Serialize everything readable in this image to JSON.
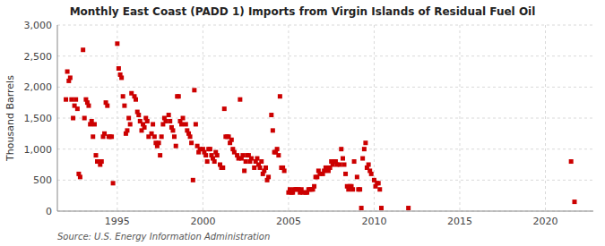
{
  "chart_data": {
    "type": "scatter",
    "title": "Monthly East Coast (PADD 1) Imports from Virgin Islands of Residual Fuel Oil",
    "y_label": "Thousand Barrels",
    "source": "Source: U.S. Energy Information Administration",
    "color": "#cc0000",
    "marker": "square",
    "grid": true,
    "xlim": [
      1991.5,
      2022.8
    ],
    "xticks": [
      1995,
      2000,
      2005,
      2010,
      2015,
      2020
    ],
    "ylim": [
      0,
      3000
    ],
    "yticks": [
      0,
      500,
      {
        "value": 1000,
        "label": "1,000"
      },
      {
        "value": 1500,
        "label": "1,500"
      },
      {
        "value": 2000,
        "label": "2,000"
      },
      {
        "value": 2500,
        "label": "2,500"
      },
      {
        "value": 3000,
        "label": "3,000"
      }
    ],
    "x": [
      1992.0,
      1992.08,
      1992.17,
      1992.25,
      1992.33,
      1992.42,
      1992.5,
      1992.58,
      1992.67,
      1992.75,
      1992.83,
      1993.0,
      1993.08,
      1993.17,
      1993.25,
      1993.33,
      1993.42,
      1993.5,
      1993.58,
      1993.67,
      1993.75,
      1993.83,
      1994.0,
      1994.08,
      1994.17,
      1994.25,
      1994.33,
      1994.42,
      1994.5,
      1994.58,
      1994.67,
      1994.75,
      1995.0,
      1995.08,
      1995.17,
      1995.25,
      1995.33,
      1995.42,
      1995.5,
      1995.58,
      1995.67,
      1995.75,
      1995.83,
      1996.0,
      1996.08,
      1996.17,
      1996.25,
      1996.33,
      1996.42,
      1996.5,
      1996.58,
      1996.67,
      1996.75,
      1996.83,
      1997.0,
      1997.08,
      1997.17,
      1997.25,
      1997.33,
      1997.42,
      1997.5,
      1997.58,
      1997.67,
      1997.75,
      1997.83,
      1998.0,
      1998.08,
      1998.17,
      1998.25,
      1998.33,
      1998.42,
      1998.5,
      1998.58,
      1998.67,
      1998.75,
      1998.83,
      1999.0,
      1999.08,
      1999.17,
      1999.25,
      1999.33,
      1999.42,
      1999.5,
      1999.58,
      1999.67,
      1999.75,
      1999.83,
      2000.0,
      2000.08,
      2000.17,
      2000.25,
      2000.33,
      2000.42,
      2000.5,
      2000.58,
      2000.67,
      2000.75,
      2000.83,
      2001.0,
      2001.08,
      2001.17,
      2001.25,
      2001.33,
      2001.42,
      2001.5,
      2001.58,
      2001.67,
      2001.75,
      2001.83,
      2002.0,
      2002.08,
      2002.17,
      2002.25,
      2002.33,
      2002.42,
      2002.5,
      2002.58,
      2002.67,
      2002.75,
      2002.83,
      2003.0,
      2003.08,
      2003.17,
      2003.25,
      2003.33,
      2003.42,
      2003.5,
      2003.58,
      2003.67,
      2003.75,
      2003.83,
      2004.0,
      2004.08,
      2004.17,
      2004.25,
      2004.33,
      2004.42,
      2004.5,
      2004.58,
      2004.67,
      2004.75,
      2005.0,
      2005.08,
      2005.17,
      2005.25,
      2005.33,
      2005.42,
      2005.5,
      2005.58,
      2005.67,
      2005.75,
      2005.83,
      2006.0,
      2006.08,
      2006.17,
      2006.25,
      2006.33,
      2006.42,
      2006.5,
      2006.58,
      2006.67,
      2006.75,
      2006.83,
      2007.0,
      2007.08,
      2007.17,
      2007.25,
      2007.33,
      2007.42,
      2007.5,
      2007.58,
      2007.67,
      2007.75,
      2007.83,
      2008.0,
      2008.08,
      2008.17,
      2008.25,
      2008.33,
      2008.42,
      2008.5,
      2008.58,
      2008.67,
      2008.75,
      2008.83,
      2009.0,
      2009.08,
      2009.17,
      2009.25,
      2009.33,
      2009.42,
      2009.5,
      2009.58,
      2009.67,
      2009.75,
      2009.83,
      2010.0,
      2010.08,
      2010.17,
      2010.25,
      2010.33,
      2010.42,
      2012.0,
      2021.5,
      2021.7
    ],
    "values": [
      1800,
      2250,
      2100,
      2150,
      1800,
      1500,
      1700,
      1800,
      1650,
      600,
      550,
      2600,
      1500,
      1800,
      1750,
      1700,
      1400,
      1450,
      1200,
      1400,
      900,
      800,
      750,
      800,
      1200,
      1250,
      1750,
      1700,
      1200,
      1200,
      1200,
      450,
      2700,
      2300,
      2200,
      2150,
      1850,
      1700,
      1250,
      1300,
      1500,
      1400,
      1900,
      1850,
      1800,
      1600,
      1550,
      1450,
      1300,
      1400,
      1350,
      1500,
      1450,
      1200,
      1250,
      1400,
      1200,
      1100,
      1050,
      1100,
      900,
      1200,
      1400,
      1500,
      1450,
      1550,
      1450,
      1350,
      1300,
      1200,
      1050,
      1850,
      1850,
      1450,
      1400,
      1500,
      1400,
      1300,
      1250,
      1200,
      1100,
      500,
      1950,
      1400,
      1050,
      950,
      1000,
      1000,
      950,
      900,
      800,
      1000,
      1000,
      900,
      850,
      800,
      950,
      900,
      750,
      700,
      700,
      1650,
      1200,
      1200,
      1200,
      1100,
      1150,
      1000,
      950,
      900,
      850,
      1800,
      850,
      900,
      650,
      800,
      900,
      900,
      800,
      850,
      700,
      800,
      850,
      750,
      700,
      800,
      600,
      650,
      700,
      500,
      550,
      1550,
      1300,
      950,
      950,
      1000,
      900,
      1850,
      700,
      700,
      650,
      300,
      350,
      300,
      300,
      350,
      350,
      350,
      350,
      300,
      350,
      300,
      300,
      300,
      350,
      350,
      350,
      350,
      400,
      550,
      550,
      650,
      600,
      600,
      650,
      700,
      700,
      650,
      700,
      800,
      750,
      800,
      800,
      750,
      750,
      1000,
      850,
      750,
      600,
      400,
      350,
      400,
      400,
      350,
      800,
      550,
      350,
      350,
      50,
      850,
      1000,
      1100,
      700,
      750,
      650,
      600,
      500,
      400,
      450,
      450,
      350,
      50,
      50,
      800,
      150
    ]
  }
}
